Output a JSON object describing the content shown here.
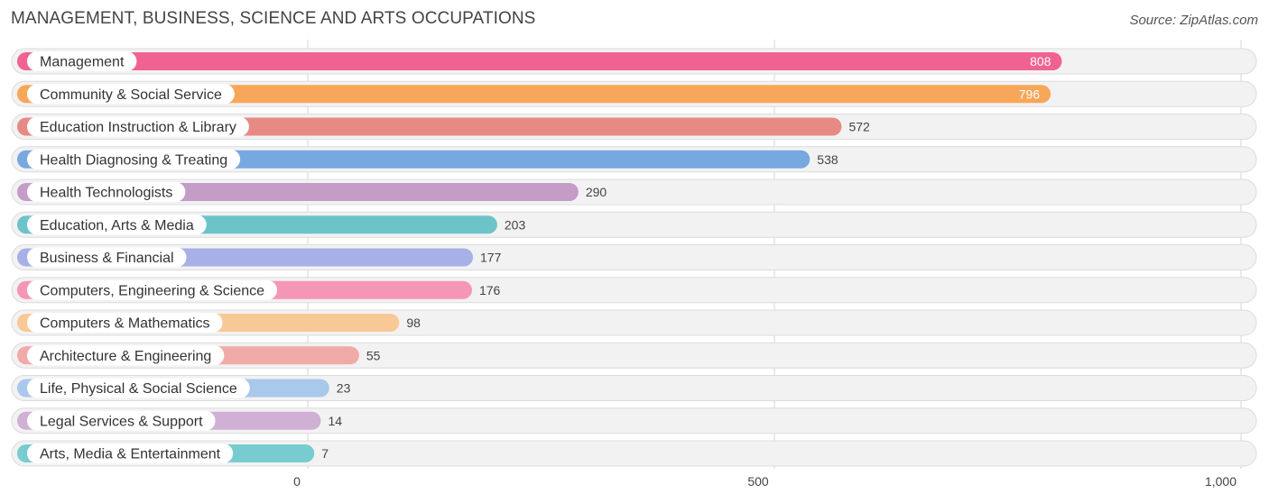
{
  "header": {
    "title": "MANAGEMENT, BUSINESS, SCIENCE AND ARTS OCCUPATIONS",
    "source": "Source: ZipAtlas.com"
  },
  "chart_data": {
    "type": "bar",
    "orientation": "horizontal",
    "title": "MANAGEMENT, BUSINESS, SCIENCE AND ARTS OCCUPATIONS",
    "xlim": [
      0,
      1000
    ],
    "x_ticks": [
      "0",
      "500",
      "1,000"
    ],
    "x_tick_values": [
      0,
      500,
      1000
    ],
    "grid": true,
    "categories": [
      "Management",
      "Community & Social Service",
      "Education Instruction & Library",
      "Health Diagnosing & Treating",
      "Health Technologists",
      "Education, Arts & Media",
      "Business & Financial",
      "Computers, Engineering & Science",
      "Computers & Mathematics",
      "Architecture & Engineering",
      "Life, Physical & Social Science",
      "Legal Services & Support",
      "Arts, Media & Entertainment"
    ],
    "values": [
      808,
      796,
      572,
      538,
      290,
      203,
      177,
      176,
      98,
      55,
      23,
      14,
      7
    ],
    "value_labels": [
      "808",
      "796",
      "572",
      "538",
      "290",
      "203",
      "177",
      "176",
      "98",
      "55",
      "23",
      "14",
      "7"
    ],
    "colors": [
      "#f06292",
      "#f8a65a",
      "#e88a84",
      "#78a8e0",
      "#c49cc8",
      "#6cc4c8",
      "#a8b0e8",
      "#f596b4",
      "#f8c896",
      "#f0aaa8",
      "#a8c8ec",
      "#d0b0d4",
      "#78ccd0"
    ]
  }
}
